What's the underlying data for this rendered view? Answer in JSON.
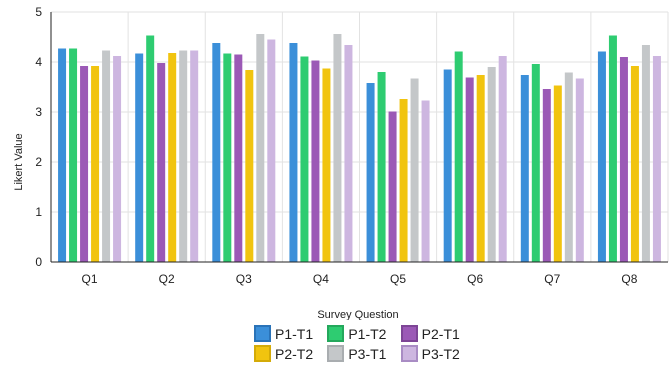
{
  "chart_data": {
    "type": "bar",
    "xlabel": "Survey Question",
    "ylabel": "Likert Value",
    "ylim": [
      0,
      5
    ],
    "yticks": [
      0,
      1,
      2,
      3,
      4,
      5
    ],
    "grid": true,
    "legend_position": "bottom",
    "categories": [
      "Q1",
      "Q2",
      "Q3",
      "Q4",
      "Q5",
      "Q6",
      "Q7",
      "Q8"
    ],
    "series": [
      {
        "name": "P1-T1",
        "color": "#3b8fd9",
        "border": "#2a73b8",
        "values": [
          4.27,
          4.17,
          4.38,
          4.38,
          3.58,
          3.85,
          3.74,
          4.21
        ]
      },
      {
        "name": "P1-T2",
        "color": "#2ecc71",
        "border": "#24a85c",
        "values": [
          4.27,
          4.53,
          4.17,
          4.11,
          3.8,
          4.21,
          3.96,
          4.53
        ]
      },
      {
        "name": "P2-T1",
        "color": "#9b59b6",
        "border": "#7d4596",
        "values": [
          3.92,
          3.98,
          4.15,
          4.03,
          3.01,
          3.69,
          3.46,
          4.1
        ]
      },
      {
        "name": "P2-T2",
        "color": "#f1c40f",
        "border": "#d4ab08",
        "values": [
          3.92,
          4.18,
          3.84,
          3.87,
          3.26,
          3.74,
          3.53,
          3.92
        ]
      },
      {
        "name": "P3-T1",
        "color": "#c4c7c9",
        "border": "#a9adb0",
        "values": [
          4.23,
          4.23,
          4.56,
          4.56,
          3.67,
          3.9,
          3.79,
          4.34
        ]
      },
      {
        "name": "P3-T2",
        "color": "#cdb6e0",
        "border": "#a98cc4",
        "values": [
          4.12,
          4.23,
          4.45,
          4.34,
          3.23,
          4.12,
          3.67,
          4.12
        ]
      }
    ]
  }
}
